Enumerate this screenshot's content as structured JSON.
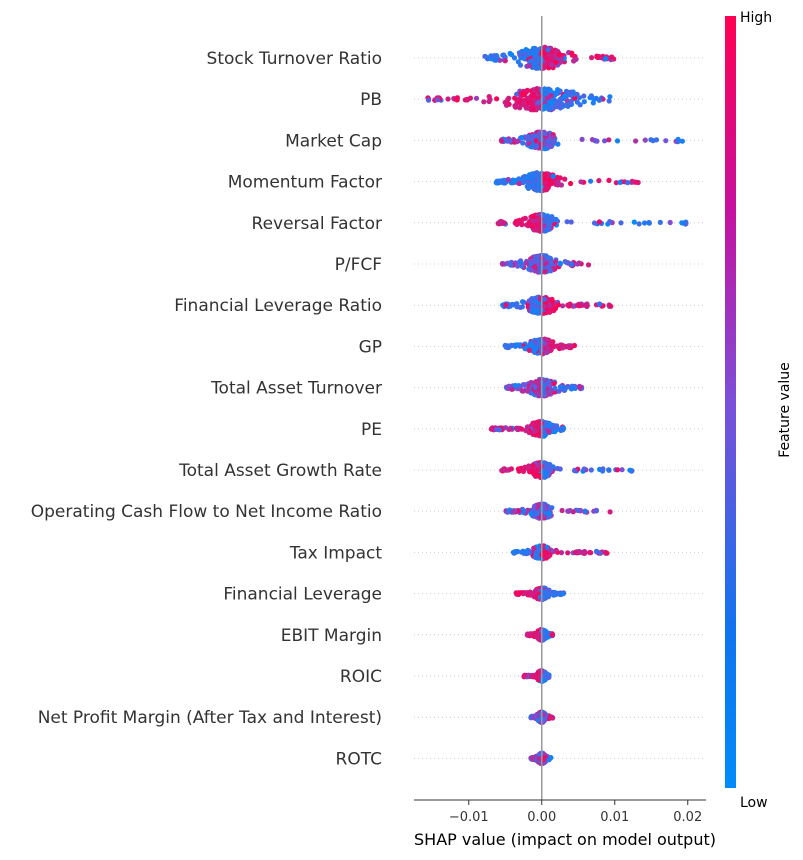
{
  "chart_data": {
    "type": "scatter",
    "subtype": "shap-beeswarm",
    "xlabel": "SHAP value (impact on model output)",
    "xlim": [
      -0.0175,
      0.0225
    ],
    "xticks": [
      -0.01,
      0.0,
      0.01,
      0.02
    ],
    "xtick_labels": [
      "−0.01",
      "0.00",
      "0.01",
      "0.02"
    ],
    "colorbar": {
      "label": "Feature value",
      "high": "High",
      "low": "Low",
      "colors": {
        "low": "#008bfb",
        "high": "#ff0052"
      }
    },
    "features": [
      {
        "name": "Stock Turnover Ratio",
        "min": -0.0085,
        "max": 0.01,
        "neg_color": "low",
        "spread": 0.004
      },
      {
        "name": "PB",
        "min": -0.016,
        "max": 0.0095,
        "neg_color": "high",
        "spread": 0.006
      },
      {
        "name": "Market Cap",
        "min": -0.0055,
        "max": 0.0195,
        "neg_color": "mixed",
        "spread": 0.0025
      },
      {
        "name": "Momentum Factor",
        "min": -0.0065,
        "max": 0.0135,
        "neg_color": "low",
        "spread": 0.003
      },
      {
        "name": "Reversal Factor",
        "min": -0.006,
        "max": 0.02,
        "neg_color": "high",
        "spread": 0.0025
      },
      {
        "name": "P/FCF",
        "min": -0.0055,
        "max": 0.0065,
        "neg_color": "mixed",
        "spread": 0.0025
      },
      {
        "name": "Financial Leverage Ratio",
        "min": -0.0055,
        "max": 0.0095,
        "neg_color": "low",
        "spread": 0.0025
      },
      {
        "name": "GP",
        "min": -0.005,
        "max": 0.0045,
        "neg_color": "low",
        "spread": 0.002
      },
      {
        "name": "Total Asset Turnover",
        "min": -0.005,
        "max": 0.0055,
        "neg_color": "mixed",
        "spread": 0.0025
      },
      {
        "name": "PE",
        "min": -0.007,
        "max": 0.003,
        "neg_color": "high",
        "spread": 0.002
      },
      {
        "name": "Total Asset Growth Rate",
        "min": -0.0055,
        "max": 0.0125,
        "neg_color": "high",
        "spread": 0.002
      },
      {
        "name": "Operating Cash Flow to Net Income Ratio",
        "min": -0.005,
        "max": 0.0095,
        "neg_color": "mixed",
        "spread": 0.0018
      },
      {
        "name": "Tax Impact",
        "min": -0.004,
        "max": 0.009,
        "neg_color": "low",
        "spread": 0.0015
      },
      {
        "name": "Financial Leverage",
        "min": -0.0035,
        "max": 0.003,
        "neg_color": "high",
        "spread": 0.0012
      },
      {
        "name": "EBIT Margin",
        "min": -0.002,
        "max": 0.0015,
        "neg_color": "high",
        "spread": 0.0008
      },
      {
        "name": "ROIC",
        "min": -0.0025,
        "max": 0.001,
        "neg_color": "high",
        "spread": 0.0008
      },
      {
        "name": "Net Profit Margin (After Tax and Interest)",
        "min": -0.0015,
        "max": 0.0015,
        "neg_color": "mixed",
        "spread": 0.0007
      },
      {
        "name": "ROTC",
        "min": -0.0015,
        "max": 0.0015,
        "neg_color": "mixed",
        "spread": 0.0007
      }
    ]
  }
}
